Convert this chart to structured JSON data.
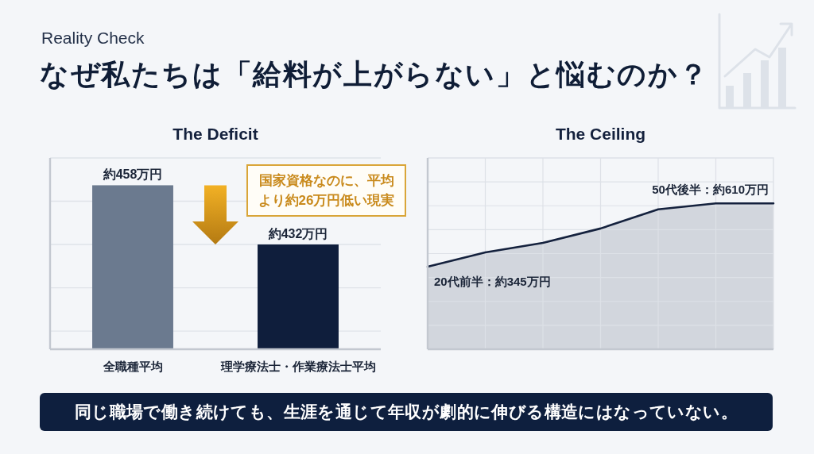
{
  "chart_data": [
    {
      "type": "other",
      "subtitle": "Reality Check",
      "title": "なぜ私たちは「給料が上がらない」と悩むのか？",
      "annotations": [
        "同じ職場で働き続けても、生涯を通じて年収が劇的に伸びる構造にはなっていない。"
      ]
    },
    {
      "type": "bar",
      "title": "The Deficit",
      "categories": [
        "全職種平均",
        "理学療法士・作業療法士平均"
      ],
      "values": [
        458,
        432
      ],
      "colors": [
        "#6b7a8f",
        "#0f1e3c"
      ],
      "value_labels": [
        "約458万円",
        "約432万円"
      ],
      "ylim": [
        386,
        470
      ],
      "yticks": [
        {
          "value": 394,
          "label": null
        },
        {
          "value": 413,
          "label": null
        },
        {
          "value": 432,
          "label": null
        },
        {
          "value": 451,
          "label": null
        }
      ],
      "grid": "y",
      "tick_labels": "x",
      "annotations": [
        "国家資格なのに、平均より約26万円低い現実"
      ]
    },
    {
      "type": "area",
      "title": "The Ceiling",
      "categories": [
        null,
        null,
        null,
        null,
        null,
        null,
        null
      ],
      "series": [
        {
          "color": "#14213d",
          "values": [
            345,
            405,
            445,
            505,
            585,
            610,
            610
          ],
          "value_labels": [
            "20代前半：約345万円",
            null,
            null,
            null,
            null,
            null,
            "50代後半：約610万円"
          ]
        }
      ],
      "ylim": [
        0,
        800
      ],
      "yticks": [
        {
          "value": 100,
          "label": null
        },
        {
          "value": 200,
          "label": null
        },
        {
          "value": 300,
          "label": null
        },
        {
          "value": 400,
          "label": null
        },
        {
          "value": 500,
          "label": null
        },
        {
          "value": 600,
          "label": null
        },
        {
          "value": 700,
          "label": null
        }
      ],
      "grid": true,
      "tick_labels": false
    }
  ]
}
